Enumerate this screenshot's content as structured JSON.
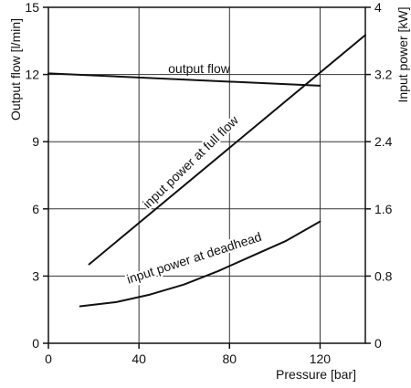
{
  "chart_data": {
    "type": "line",
    "xlabel": "Pressure [bar]",
    "ylabel_left": "Output flow [l/min]",
    "ylabel_right": "Input power [kW]",
    "xlim": [
      0,
      140
    ],
    "ylim_left": [
      0,
      15
    ],
    "ylim_right": [
      0,
      4
    ],
    "x_ticks": [
      "0",
      "40",
      "80",
      "120"
    ],
    "x_tick_values": [
      0,
      40,
      80,
      120
    ],
    "y_left_ticks": [
      "0",
      "3",
      "6",
      "9",
      "12",
      "15"
    ],
    "y_left_tick_values": [
      0,
      3,
      6,
      9,
      12,
      15
    ],
    "y_right_ticks": [
      "0",
      "0.8",
      "1.6",
      "2.4",
      "3.2",
      "4"
    ],
    "y_right_tick_values": [
      0,
      0.8,
      1.6,
      2.4,
      3.2,
      4
    ],
    "grid": true,
    "series": [
      {
        "name": "output flow",
        "axis": "left",
        "x": [
          0,
          120
        ],
        "y": [
          12.05,
          11.5
        ]
      },
      {
        "name": "input power at full flow",
        "axis": "right",
        "x": [
          18,
          140
        ],
        "y": [
          0.94,
          3.67
        ]
      },
      {
        "name": "input power at deadhead",
        "axis": "right",
        "x": [
          14,
          30,
          45,
          60,
          75,
          90,
          105,
          120
        ],
        "y": [
          0.44,
          0.49,
          0.58,
          0.7,
          0.86,
          1.04,
          1.22,
          1.45
        ]
      }
    ],
    "line_color": "#111111",
    "grid_color": "#333333"
  }
}
